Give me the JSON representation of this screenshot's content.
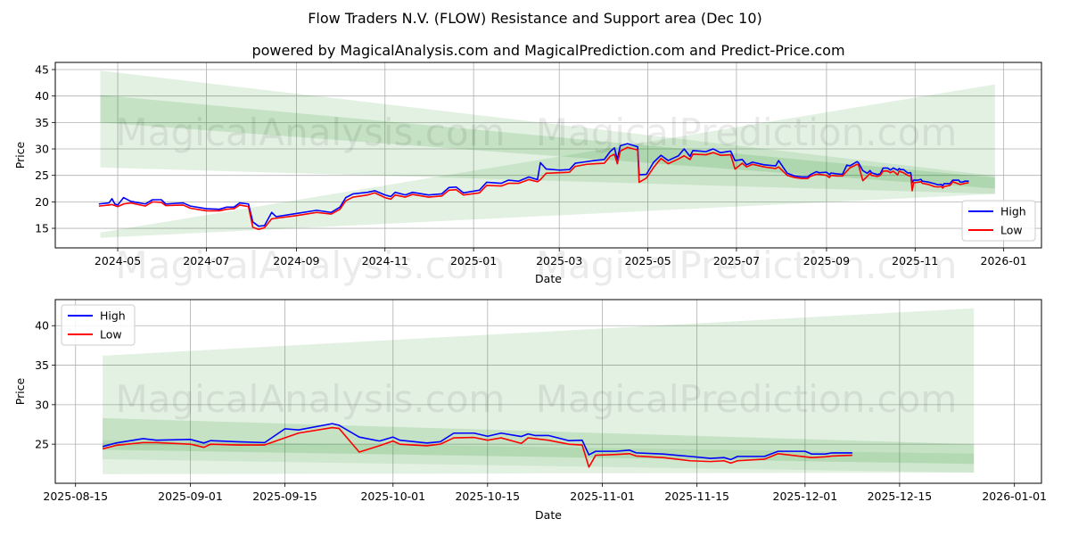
{
  "title": "Flow Traders N.V. (FLOW) Resistance and Support area (Dec 10)",
  "subtitle": "powered by MagicalAnalysis.com and MagicalPrediction.com and Predict-Price.com",
  "watermarks": [
    "MagicalAnalysis.com",
    "MagicalPrediction.com"
  ],
  "colors": {
    "high": "#0000ff",
    "low": "#ff0000",
    "band": "#008000",
    "grid": "#b0b0b0"
  },
  "chart_data": [
    {
      "type": "line",
      "xlabel": "Date",
      "ylabel": "Price",
      "xlim": [
        "2024-03-19",
        "2026-01-27"
      ],
      "ylim": [
        11.3,
        46.35
      ],
      "grid": true,
      "legend": {
        "placement": "lower-right",
        "entries": [
          "High",
          "Low"
        ]
      },
      "yticks": [
        15,
        20,
        25,
        30,
        35,
        40,
        45
      ],
      "xticks": [
        "2024-05",
        "2024-07",
        "2024-09",
        "2024-11",
        "2025-01",
        "2025-03",
        "2025-05",
        "2025-07",
        "2025-09",
        "2025-11",
        "2026-01"
      ],
      "bands": [
        {
          "name": "resistance-outer",
          "start": "2024-04-19",
          "end": "2025-12-26",
          "top": [
            44.8,
            24.9
          ],
          "bottom": [
            26.5,
            21.5
          ],
          "opacity": 0.11
        },
        {
          "name": "resistance-inner",
          "start": "2024-04-19",
          "end": "2025-12-26",
          "top": [
            40.2,
            24.6
          ],
          "bottom": [
            35.0,
            22.5
          ],
          "opacity": 0.13
        },
        {
          "name": "support",
          "start": "2024-04-19",
          "end": "2025-12-26",
          "top": [
            14.2,
            42.2
          ],
          "bottom": [
            13.2,
            21.5
          ],
          "opacity": 0.11
        }
      ],
      "from": "2024-04-01"
    },
    {
      "type": "line",
      "xlabel": "Date",
      "ylabel": "Price",
      "xlim": [
        "2025-08-12",
        "2026-01-05"
      ],
      "ylim": [
        20.05,
        43.3
      ],
      "grid": true,
      "legend": {
        "placement": "upper-left",
        "entries": [
          "High",
          "Low"
        ]
      },
      "yticks": [
        25,
        30,
        35,
        40
      ],
      "xticks": [
        "2025-08-15",
        "2025-09-01",
        "2025-09-15",
        "2025-10-01",
        "2025-10-15",
        "2025-11-01",
        "2025-11-15",
        "2025-12-01",
        "2025-12-15",
        "2026-01-01"
      ],
      "bands": [
        {
          "name": "support-wide",
          "start": "2025-08-19",
          "end": "2025-12-26",
          "top": [
            36.2,
            42.2
          ],
          "bottom": [
            21.2,
            21.4
          ],
          "opacity": 0.11
        },
        {
          "name": "resistance-inner",
          "start": "2025-08-19",
          "end": "2025-12-26",
          "top": [
            28.3,
            25.0
          ],
          "bottom": [
            24.3,
            22.5
          ],
          "opacity": 0.13
        },
        {
          "name": "resistance-core",
          "start": "2025-08-19",
          "end": "2025-12-26",
          "top": [
            25.5,
            23.8
          ],
          "bottom": [
            23.1,
            21.4
          ],
          "opacity": 0.09
        }
      ],
      "from": "2025-08-19"
    }
  ],
  "prices": [
    [
      "2024-04-18",
      19.6,
      19.2
    ],
    [
      "2024-04-25",
      19.8,
      19.4
    ],
    [
      "2024-04-27",
      20.6,
      19.5
    ],
    [
      "2024-04-29",
      19.6,
      19.3
    ],
    [
      "2024-05-01",
      19.4,
      19.1
    ],
    [
      "2024-05-05",
      20.8,
      19.6
    ],
    [
      "2024-05-10",
      20.1,
      19.8
    ],
    [
      "2024-05-20",
      19.6,
      19.2
    ],
    [
      "2024-05-25",
      20.4,
      20.0
    ],
    [
      "2024-05-31",
      20.4,
      19.9
    ],
    [
      "2024-06-03",
      19.6,
      19.3
    ],
    [
      "2024-06-15",
      19.8,
      19.4
    ],
    [
      "2024-06-20",
      19.2,
      18.8
    ],
    [
      "2024-07-01",
      18.7,
      18.3
    ],
    [
      "2024-07-10",
      18.6,
      18.3
    ],
    [
      "2024-07-15",
      19.0,
      18.6
    ],
    [
      "2024-07-20",
      19.0,
      18.7
    ],
    [
      "2024-07-24",
      19.8,
      19.4
    ],
    [
      "2024-07-30",
      19.6,
      19.1
    ],
    [
      "2024-08-02",
      16.2,
      15.2
    ],
    [
      "2024-08-06",
      15.4,
      14.8
    ],
    [
      "2024-08-10",
      15.5,
      15.1
    ],
    [
      "2024-08-15",
      18.0,
      16.8
    ],
    [
      "2024-08-18",
      17.2,
      16.9
    ],
    [
      "2024-09-01",
      17.8,
      17.4
    ],
    [
      "2024-09-15",
      18.4,
      18.0
    ],
    [
      "2024-09-25",
      18.0,
      17.7
    ],
    [
      "2024-10-01",
      19.0,
      18.6
    ],
    [
      "2024-10-05",
      20.8,
      20.2
    ],
    [
      "2024-10-10",
      21.5,
      20.9
    ],
    [
      "2024-10-20",
      21.8,
      21.3
    ],
    [
      "2024-10-25",
      22.1,
      21.7
    ],
    [
      "2024-11-01",
      21.3,
      20.8
    ],
    [
      "2024-11-05",
      21.0,
      20.5
    ],
    [
      "2024-11-08",
      21.8,
      21.3
    ],
    [
      "2024-11-15",
      21.3,
      20.9
    ],
    [
      "2024-11-20",
      21.8,
      21.4
    ],
    [
      "2024-12-01",
      21.3,
      20.9
    ],
    [
      "2024-12-10",
      21.5,
      21.1
    ],
    [
      "2024-12-15",
      22.7,
      22.2
    ],
    [
      "2024-12-20",
      22.8,
      22.3
    ],
    [
      "2024-12-25",
      21.7,
      21.3
    ],
    [
      "2025-01-05",
      22.2,
      21.7
    ],
    [
      "2025-01-10",
      23.7,
      23.1
    ],
    [
      "2025-01-20",
      23.5,
      23.0
    ],
    [
      "2025-01-25",
      24.1,
      23.5
    ],
    [
      "2025-02-01",
      23.9,
      23.5
    ],
    [
      "2025-02-08",
      24.7,
      24.2
    ],
    [
      "2025-02-14",
      24.2,
      23.8
    ],
    [
      "2025-02-16",
      27.4,
      24.2
    ],
    [
      "2025-02-20",
      26.2,
      25.4
    ],
    [
      "2025-03-01",
      26.0,
      25.5
    ],
    [
      "2025-03-08",
      26.1,
      25.6
    ],
    [
      "2025-03-12",
      27.3,
      26.7
    ],
    [
      "2025-03-20",
      27.6,
      27.1
    ],
    [
      "2025-03-25",
      27.8,
      27.2
    ],
    [
      "2025-04-01",
      28.0,
      27.3
    ],
    [
      "2025-04-05",
      29.5,
      28.6
    ],
    [
      "2025-04-08",
      30.2,
      29.0
    ],
    [
      "2025-04-10",
      28.0,
      27.2
    ],
    [
      "2025-04-12",
      30.6,
      29.6
    ],
    [
      "2025-04-17",
      31.0,
      30.3
    ],
    [
      "2025-04-24",
      30.4,
      29.8
    ],
    [
      "2025-04-25",
      25.1,
      23.7
    ],
    [
      "2025-04-30",
      25.2,
      24.5
    ],
    [
      "2025-05-05",
      27.5,
      26.5
    ],
    [
      "2025-05-10",
      28.8,
      28.2
    ],
    [
      "2025-05-15",
      27.8,
      27.2
    ],
    [
      "2025-05-22",
      28.7,
      28.1
    ],
    [
      "2025-05-26",
      30.0,
      28.7
    ],
    [
      "2025-05-30",
      28.6,
      28.0
    ],
    [
      "2025-06-01",
      29.7,
      29.0
    ],
    [
      "2025-06-10",
      29.5,
      28.9
    ],
    [
      "2025-06-15",
      30.0,
      29.3
    ],
    [
      "2025-06-20",
      29.3,
      28.8
    ],
    [
      "2025-06-27",
      29.6,
      28.9
    ],
    [
      "2025-06-30",
      27.8,
      26.2
    ],
    [
      "2025-07-05",
      28.0,
      27.3
    ],
    [
      "2025-07-08",
      27.0,
      26.6
    ],
    [
      "2025-07-12",
      27.5,
      27.1
    ],
    [
      "2025-07-20",
      27.0,
      26.6
    ],
    [
      "2025-07-28",
      26.8,
      26.3
    ],
    [
      "2025-07-30",
      27.8,
      26.6
    ],
    [
      "2025-08-05",
      25.4,
      25.0
    ],
    [
      "2025-08-10",
      24.9,
      24.6
    ],
    [
      "2025-08-15",
      24.7,
      24.4
    ],
    [
      "2025-08-19",
      24.7,
      24.4
    ],
    [
      "2025-08-21",
      25.15,
      24.85
    ],
    [
      "2025-08-25",
      25.7,
      25.2
    ],
    [
      "2025-08-27",
      25.5,
      25.2
    ],
    [
      "2025-09-01",
      25.6,
      25.0
    ],
    [
      "2025-09-03",
      25.15,
      24.6
    ],
    [
      "2025-09-04",
      25.45,
      25.0
    ],
    [
      "2025-09-08",
      25.3,
      24.9
    ],
    [
      "2025-09-12",
      25.2,
      24.9
    ],
    [
      "2025-09-15",
      26.95,
      25.8
    ],
    [
      "2025-09-17",
      26.8,
      26.4
    ],
    [
      "2025-09-22",
      27.6,
      27.1
    ],
    [
      "2025-09-23",
      27.4,
      27.0
    ],
    [
      "2025-09-26",
      25.9,
      24.0
    ],
    [
      "2025-09-29",
      25.4,
      24.8
    ],
    [
      "2025-10-01",
      25.9,
      25.4
    ],
    [
      "2025-10-02",
      25.5,
      25.0
    ],
    [
      "2025-10-06",
      25.15,
      24.8
    ],
    [
      "2025-10-08",
      25.3,
      25.0
    ],
    [
      "2025-10-10",
      26.4,
      25.8
    ],
    [
      "2025-10-13",
      26.4,
      25.85
    ],
    [
      "2025-10-15",
      26.0,
      25.5
    ],
    [
      "2025-10-17",
      26.4,
      25.8
    ],
    [
      "2025-10-20",
      25.97,
      25.1
    ],
    [
      "2025-10-21",
      26.3,
      25.8
    ],
    [
      "2025-10-22",
      26.1,
      25.7
    ],
    [
      "2025-10-24",
      26.1,
      25.5
    ],
    [
      "2025-10-27",
      25.45,
      25.0
    ],
    [
      "2025-10-29",
      25.5,
      24.9
    ],
    [
      "2025-10-30",
      23.65,
      22.1
    ],
    [
      "2025-10-31",
      24.1,
      23.6
    ],
    [
      "2025-11-03",
      24.1,
      23.7
    ],
    [
      "2025-11-05",
      24.25,
      23.8
    ],
    [
      "2025-11-06",
      23.9,
      23.5
    ],
    [
      "2025-11-10",
      23.75,
      23.3
    ],
    [
      "2025-11-14",
      23.45,
      22.9
    ],
    [
      "2025-11-17",
      23.2,
      22.8
    ],
    [
      "2025-11-19",
      23.3,
      22.9
    ],
    [
      "2025-11-20",
      23.05,
      22.6
    ],
    [
      "2025-11-21",
      23.45,
      22.9
    ],
    [
      "2025-11-25",
      23.45,
      23.1
    ],
    [
      "2025-11-27",
      24.1,
      23.8
    ],
    [
      "2025-12-01",
      24.1,
      23.4
    ],
    [
      "2025-12-02",
      23.75,
      23.3
    ],
    [
      "2025-12-04",
      23.75,
      23.4
    ],
    [
      "2025-12-05",
      23.9,
      23.5
    ],
    [
      "2025-12-08",
      23.9,
      23.6
    ]
  ]
}
